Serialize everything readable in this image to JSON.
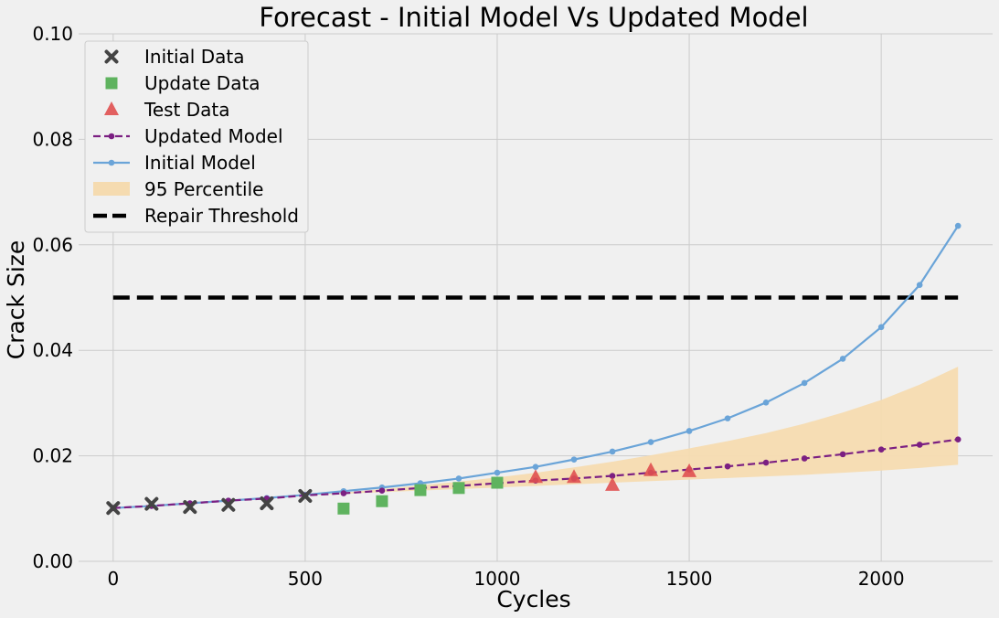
{
  "chart_data": {
    "type": "line",
    "title": "Forecast - Initial Model Vs Updated Model",
    "xlabel": "Cycles",
    "ylabel": "Crack Size",
    "xlim": [
      -90,
      2290
    ],
    "ylim": [
      0.0,
      0.1
    ],
    "x_ticks": [
      0,
      500,
      1000,
      1500,
      2000
    ],
    "y_ticks": [
      0.0,
      0.02,
      0.04,
      0.06,
      0.08,
      0.1
    ],
    "x_tick_labels": [
      "0",
      "500",
      "1000",
      "1500",
      "2000"
    ],
    "y_tick_labels": [
      "0.00",
      "0.02",
      "0.04",
      "0.06",
      "0.08",
      "0.10"
    ],
    "grid": true,
    "legend_position": "top-left",
    "legend": [
      "Initial Data",
      "Update Data",
      "Test Data",
      "Updated Model",
      "Initial Model",
      "95 Percentile",
      "Repair Threshold"
    ],
    "colors": {
      "initial_data": "#444444",
      "update_data": "#5fb35f",
      "test_data": "#e05050",
      "updated_model": "#7b1f82",
      "initial_model": "#6aa4d8",
      "percentile": "#f5dbb0",
      "threshold": "#000000",
      "grid": "#cbcbcb"
    },
    "series": {
      "initial_data": {
        "x": [
          0,
          100,
          200,
          300,
          400,
          500
        ],
        "y": [
          0.0101,
          0.0109,
          0.0103,
          0.0107,
          0.011,
          0.0124
        ]
      },
      "update_data": {
        "x": [
          600,
          700,
          800,
          900,
          1000
        ],
        "y": [
          0.01,
          0.0114,
          0.0135,
          0.0139,
          0.0149
        ]
      },
      "test_data": {
        "x": [
          1100,
          1200,
          1300,
          1400,
          1500
        ],
        "y": [
          0.0159,
          0.0159,
          0.0144,
          0.0172,
          0.017
        ]
      },
      "updated_model": {
        "x": [
          0,
          100,
          200,
          300,
          400,
          500,
          600,
          700,
          800,
          900,
          1000,
          1100,
          1200,
          1300,
          1400,
          1500,
          1600,
          1700,
          1800,
          1900,
          2000,
          2100,
          2200
        ],
        "y": [
          0.0101,
          0.0105,
          0.011,
          0.0115,
          0.0119,
          0.0125,
          0.0129,
          0.0134,
          0.0139,
          0.0143,
          0.0148,
          0.0153,
          0.0157,
          0.0162,
          0.0168,
          0.0174,
          0.018,
          0.0187,
          0.0195,
          0.0203,
          0.0212,
          0.0221,
          0.0231
        ]
      },
      "initial_model": {
        "x": [
          0,
          100,
          200,
          300,
          400,
          500,
          600,
          700,
          800,
          900,
          1000,
          1100,
          1200,
          1300,
          1400,
          1500,
          1600,
          1700,
          1800,
          1900,
          2000,
          2100,
          2200
        ],
        "y": [
          0.0101,
          0.0105,
          0.011,
          0.0115,
          0.012,
          0.0126,
          0.0133,
          0.014,
          0.0148,
          0.0157,
          0.0168,
          0.0179,
          0.0193,
          0.0208,
          0.0226,
          0.0247,
          0.0271,
          0.0301,
          0.0338,
          0.0384,
          0.0444,
          0.0524,
          0.0636
        ]
      },
      "percentile_band": {
        "x": [
          500,
          600,
          700,
          800,
          900,
          1000,
          1100,
          1200,
          1300,
          1400,
          1500,
          1600,
          1700,
          1800,
          1900,
          2000,
          2100,
          2200
        ],
        "lower": [
          0.0125,
          0.0128,
          0.0131,
          0.0134,
          0.0137,
          0.014,
          0.0143,
          0.0146,
          0.0149,
          0.0152,
          0.0155,
          0.0158,
          0.0161,
          0.0164,
          0.0168,
          0.0172,
          0.0177,
          0.0183
        ],
        "upper": [
          0.0125,
          0.013,
          0.0137,
          0.0144,
          0.0151,
          0.0159,
          0.0168,
          0.0178,
          0.0189,
          0.0201,
          0.0214,
          0.0228,
          0.0243,
          0.0261,
          0.0282,
          0.0306,
          0.0335,
          0.0369
        ]
      },
      "repair_threshold": {
        "x": [
          0,
          2200
        ],
        "y": [
          0.05,
          0.05
        ]
      }
    }
  }
}
